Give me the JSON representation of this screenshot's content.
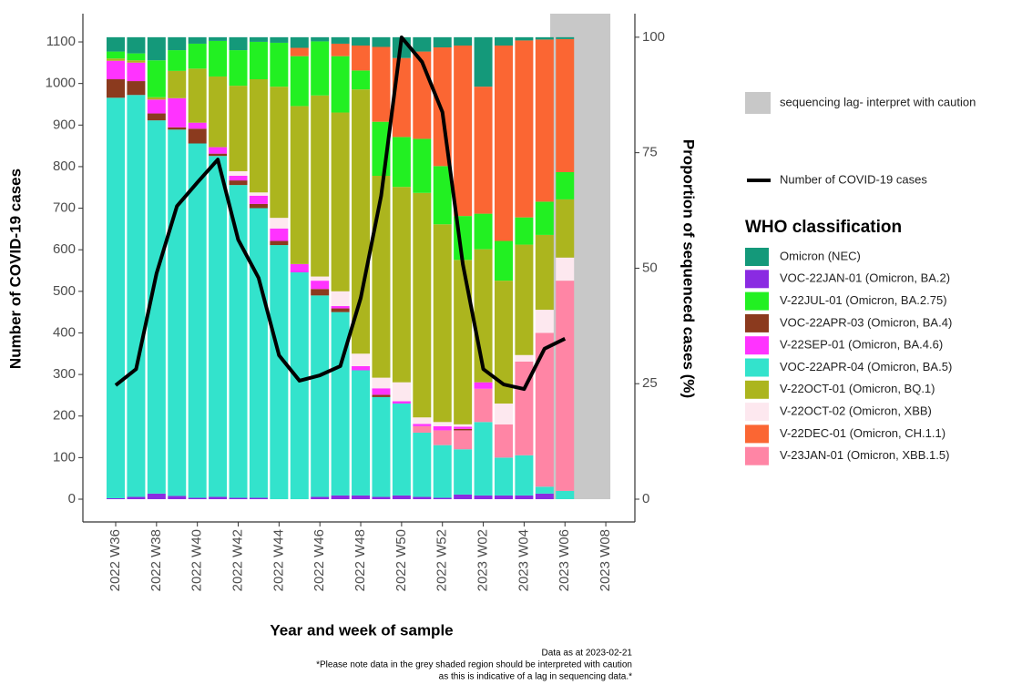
{
  "chart_data": {
    "type": "bar",
    "stacked": true,
    "grid": false,
    "y_label": "Number of COVID-19 cases",
    "y2_label": "Proportion of sequenced cases (%)",
    "x_label": "Year and week of sample",
    "notes": [
      "Data as at  2023-02-21",
      "*Please note data in the grey shaded region should be interpreted with caution",
      "as this is indicative of a lag in sequencing data.*"
    ],
    "legend_title": "WHO classification",
    "shaded_region": {
      "label": "sequencing lag- interpret with caution",
      "color": "#c8c8c8",
      "from": "2023 W06",
      "to": "2023 W08"
    },
    "categories": [
      "2022 W36",
      null,
      "2022 W38",
      null,
      "2022 W40",
      null,
      "2022 W42",
      null,
      "2022 W44",
      null,
      "2022 W46",
      null,
      "2022 W48",
      null,
      "2022 W50",
      null,
      "2022 W52",
      null,
      "2023 W02",
      null,
      "2023 W04",
      null,
      "2023 W06",
      null,
      "2023 W08"
    ],
    "ylim": [
      -54.8,
      1168
    ],
    "yticks": [
      0,
      100,
      200,
      300,
      400,
      500,
      600,
      700,
      800,
      900,
      1000,
      1100
    ],
    "y2lim": [
      -4.93,
      105.1
    ],
    "y2ticks": [
      0,
      25,
      50,
      75,
      100
    ],
    "series": [
      {
        "name": "Omicron (NEC)",
        "color": "#14997a",
        "axis": "y2",
        "values": [
          3.1,
          3.5,
          5,
          2.8,
          1.4,
          0.8,
          2.8,
          1,
          1.2,
          2.3,
          0.9,
          1.4,
          1.8,
          2.1,
          4.5,
          3.1,
          2.2,
          1.8,
          10.7,
          1.8,
          0.7,
          0.5,
          0.4,
          null,
          null
        ]
      },
      {
        "name": "VOC-22JAN-01 (Omicron, BA.2)",
        "color": "#8a2be2",
        "axis": "y2",
        "values": [
          0.2,
          0.5,
          1.2,
          0.7,
          0.3,
          0.5,
          0.3,
          0.3,
          0,
          0,
          0.5,
          0.8,
          0.8,
          0.5,
          0.8,
          0.5,
          0.3,
          1,
          0.8,
          0.8,
          0.8,
          1.2,
          0,
          null,
          null
        ]
      },
      {
        "name": "V-22JUL-01 (Omicron, BA.2.75)",
        "color": "#22f022",
        "axis": "y2",
        "values": [
          1.5,
          1.5,
          8,
          4.5,
          5.4,
          7.7,
          7.7,
          8.1,
          9.5,
          10.8,
          11.7,
          12.2,
          4.1,
          11.7,
          10.8,
          11.7,
          12.6,
          9.5,
          7.7,
          8.6,
          5.9,
          7.2,
          5.9,
          null,
          null
        ]
      },
      {
        "name": "VOC-22APR-03 (Omicron, BA.4)",
        "color": "#8b3a1e",
        "axis": "y2",
        "values": [
          4,
          3,
          1.5,
          0.5,
          3.2,
          0.5,
          1,
          0.9,
          0.9,
          0,
          1.4,
          0.8,
          0,
          0.5,
          0,
          0,
          0,
          0.3,
          0,
          0,
          0,
          0,
          0,
          null,
          null
        ]
      },
      {
        "name": "V-22SEP-01 (Omicron, BA.4.6)",
        "color": "#ff33ff",
        "axis": "y2",
        "values": [
          4,
          4,
          3,
          6.3,
          1.3,
          1.4,
          1,
          1.8,
          2.7,
          1.8,
          1.8,
          0.5,
          0.9,
          1.4,
          0.5,
          0.5,
          0.9,
          0.5,
          1.4,
          0,
          0,
          0,
          0,
          null,
          null
        ]
      },
      {
        "name": "VOC-22APR-04 (Omicron, BA.5)",
        "color": "#33e3cc",
        "axis": "y2",
        "values": [
          86.7,
          87,
          80.8,
          79.3,
          76.7,
          73.8,
          67.7,
          62.7,
          55,
          49.1,
          43.6,
          39.7,
          27.1,
          21.6,
          19.9,
          13.9,
          11.4,
          9.8,
          15.9,
          8.2,
          8.7,
          1.5,
          1.8,
          null,
          null
        ]
      },
      {
        "name": "V-22OCT-01 (Omicron, BQ.1)",
        "color": "#acb51e",
        "axis": "y2",
        "values": [
          0.5,
          0.5,
          0.5,
          5.9,
          11.7,
          15.3,
          18.5,
          24.5,
          28.4,
          34.2,
          39.2,
          38.7,
          57.2,
          43.7,
          42.3,
          48.6,
          42.8,
          35.6,
          28.8,
          26.6,
          23.9,
          16.2,
          12.6,
          null,
          null
        ]
      },
      {
        "name": "V-22OCT-02 (Omicron, XBB)",
        "color": "#fde8ef",
        "axis": "y2",
        "values": [
          0,
          0,
          0,
          0,
          0,
          0,
          1,
          0.7,
          2.3,
          0,
          0.9,
          3.2,
          2.7,
          2.3,
          4.1,
          1.4,
          0.9,
          0.5,
          0,
          4.5,
          1.4,
          5,
          5,
          null,
          null
        ]
      },
      {
        "name": "V-22DEC-01 (Omicron, CH.1.1)",
        "color": "#fb6633",
        "axis": "y2",
        "values": [
          0,
          0,
          0,
          0,
          0,
          0,
          0,
          0,
          0,
          1.8,
          0,
          2.7,
          5.4,
          16.2,
          17.1,
          18.9,
          25.7,
          36.9,
          27.5,
          42.3,
          38.3,
          35.1,
          28.8,
          null,
          null
        ]
      },
      {
        "name": "V-23JAN-01 (Omicron, XBB.1.5)",
        "color": "#ff85a5",
        "axis": "y2",
        "values": [
          0,
          0,
          0,
          0,
          0,
          0,
          0,
          0,
          0,
          0,
          0,
          0,
          0,
          0,
          0,
          1.4,
          3.2,
          4.1,
          7.2,
          7.2,
          20.3,
          33.3,
          45.5,
          null,
          null
        ]
      },
      {
        "name": "Number of COVID-19 cases",
        "type": "line",
        "color": "#000000",
        "axis": "y",
        "values": [
          274,
          313,
          543,
          705,
          762,
          817,
          624,
          532,
          346,
          285,
          298,
          320,
          484,
          730,
          1111,
          1052,
          931,
          565,
          313,
          276,
          265,
          362,
          386,
          null,
          null
        ]
      }
    ]
  }
}
